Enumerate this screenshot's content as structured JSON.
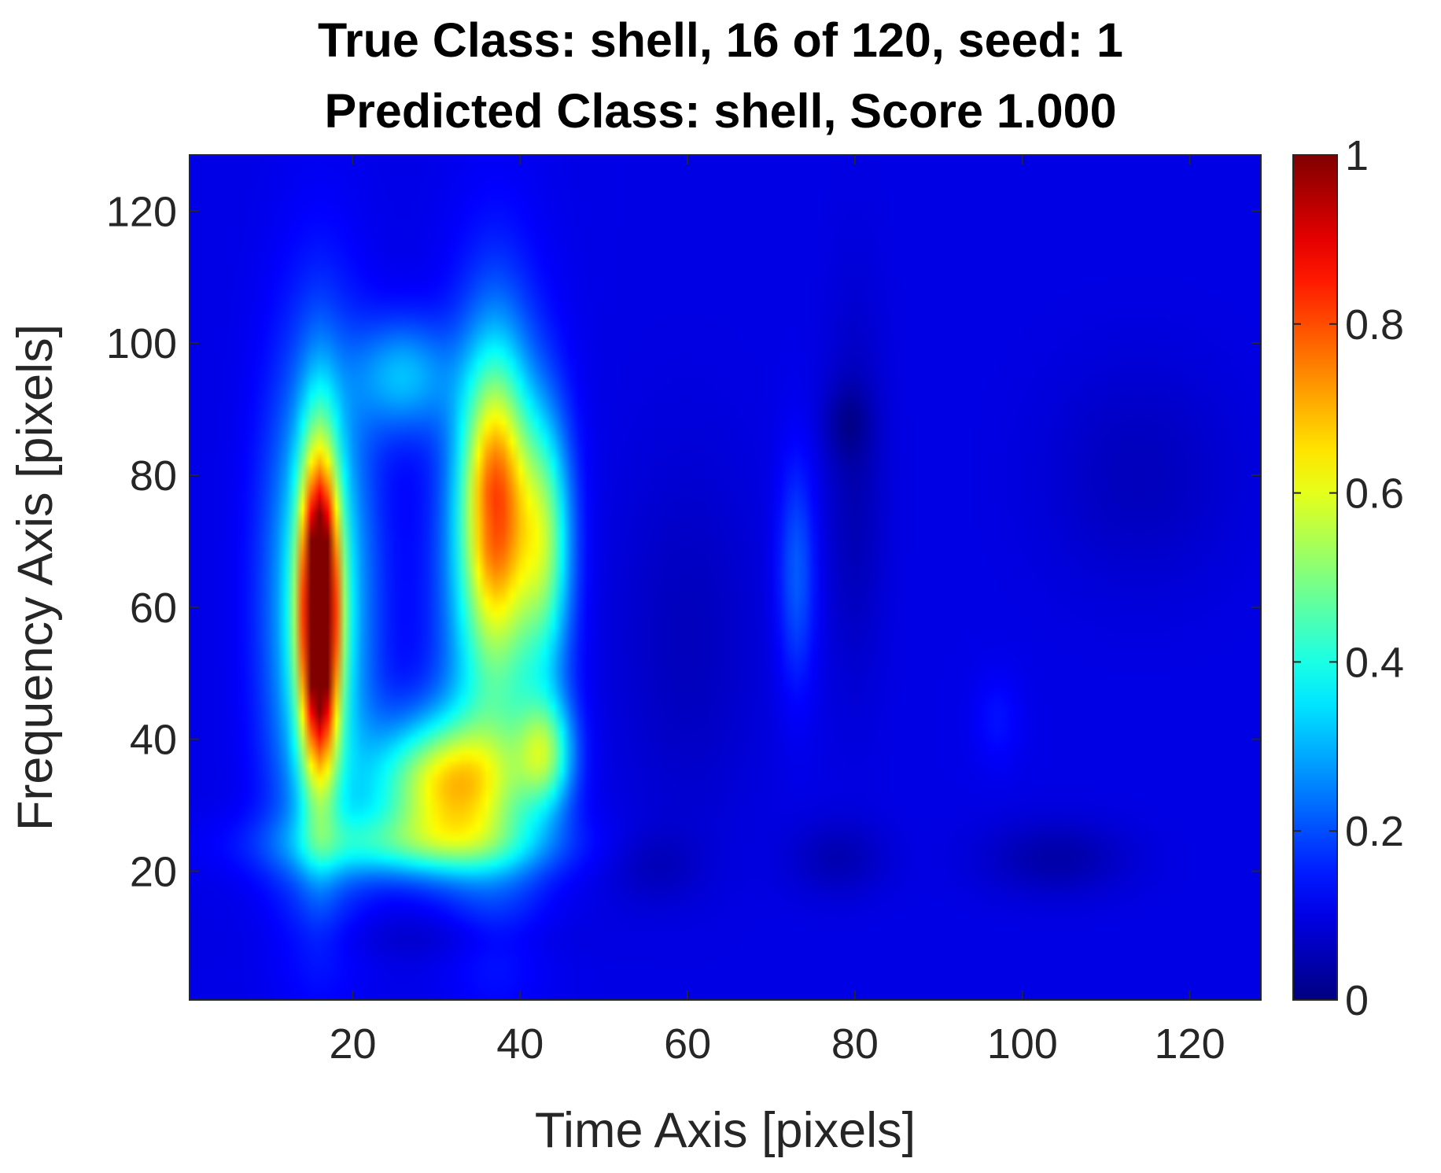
{
  "chart_data": {
    "type": "heatmap",
    "title": "True Class: shell, 16 of 120, seed: 1",
    "subtitle": "Predicted Class: shell, Score 1.000",
    "xlabel": "Time Axis [pixels]",
    "ylabel": "Frequency Axis [pixels]",
    "xlim": [
      0.5,
      128.5
    ],
    "ylim": [
      0.5,
      128.5
    ],
    "x_ticks": [
      20,
      40,
      60,
      80,
      100,
      120
    ],
    "y_ticks": [
      20,
      40,
      60,
      80,
      100,
      120
    ],
    "x_tick_labels": [
      "20",
      "40",
      "60",
      "80",
      "100",
      "120"
    ],
    "y_tick_labels": [
      "20",
      "40",
      "60",
      "80",
      "100",
      "120"
    ],
    "colormap": "jet",
    "colorbar": {
      "range": [
        0,
        1
      ],
      "ticks": [
        0,
        0.2,
        0.4,
        0.6,
        0.8,
        1
      ],
      "tick_labels": [
        "0",
        "0.2",
        "0.4",
        "0.6",
        "0.8",
        "1"
      ]
    },
    "background_value": 0.1,
    "grid": false,
    "regions": [
      {
        "x": 16,
        "y": 59,
        "sx": 1.6,
        "sy": 17,
        "value": 0.98
      },
      {
        "x": 16,
        "y": 60,
        "sx": 4.2,
        "sy": 26,
        "value": 0.45
      },
      {
        "x": 31,
        "y": 33,
        "sx": 6,
        "sy": 7,
        "value": 0.6
      },
      {
        "x": 37,
        "y": 77,
        "sx": 2.8,
        "sy": 15,
        "value": 0.58
      },
      {
        "x": 37,
        "y": 60,
        "sx": 4.5,
        "sy": 28,
        "value": 0.38
      },
      {
        "x": 43,
        "y": 38,
        "sx": 2.3,
        "sy": 6,
        "value": 0.42
      },
      {
        "x": 43,
        "y": 70,
        "sx": 2.2,
        "sy": 13,
        "value": 0.42
      },
      {
        "x": 26,
        "y": 95,
        "sx": 4,
        "sy": 6,
        "value": 0.3
      },
      {
        "x": 27,
        "y": 24,
        "sx": 11,
        "sy": 3.5,
        "value": 0.32
      },
      {
        "x": 36,
        "y": 73,
        "sx": 1.2,
        "sy": 2.5,
        "value": 0.08
      },
      {
        "x": 73,
        "y": 65,
        "sx": 1.6,
        "sy": 12,
        "value": 0.22
      },
      {
        "x": 79,
        "y": 88,
        "sx": 2,
        "sy": 4,
        "value": 0.05
      },
      {
        "x": 80,
        "y": 78,
        "sx": 2.5,
        "sy": 20,
        "value": 0.05
      },
      {
        "x": 97,
        "y": 43,
        "sx": 2,
        "sy": 5,
        "value": 0.14
      },
      {
        "x": 104,
        "y": 22,
        "sx": 6,
        "sy": 4,
        "value": 0.04
      },
      {
        "x": 78,
        "y": 22,
        "sx": 4,
        "sy": 4,
        "value": 0.05
      },
      {
        "x": 56,
        "y": 21,
        "sx": 4,
        "sy": 4,
        "value": 0.06
      },
      {
        "x": 60,
        "y": 55,
        "sx": 6,
        "sy": 20,
        "value": 0.06
      },
      {
        "x": 114,
        "y": 80,
        "sx": 8,
        "sy": 12,
        "value": 0.06
      },
      {
        "x": 30,
        "y": 10,
        "sx": 10,
        "sy": 2.5,
        "value": 0.07
      }
    ]
  }
}
